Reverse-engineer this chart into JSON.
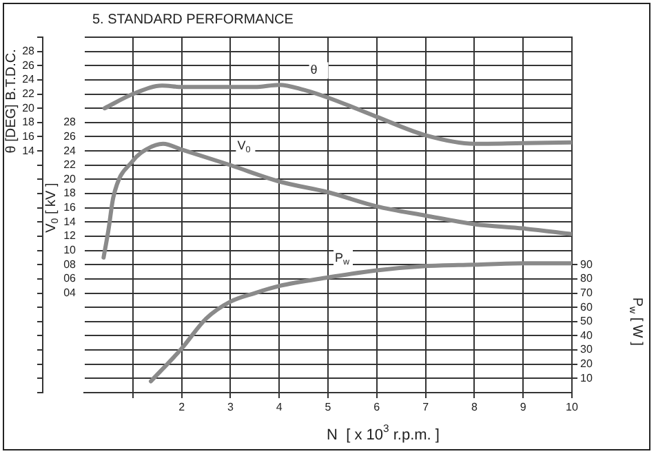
{
  "chart_data": {
    "type": "line",
    "title": "5. STANDARD PERFORMANCE",
    "xlabel": "N  [ x 10$^{3}$ r.p.m. ]",
    "ylabel": "θ [DEG] B.T.D.C.",
    "y2label": "V$_{0}$ [ kV ]",
    "y3label": "P$_{w}$ [ W ]",
    "xlim": [
      0,
      10
    ],
    "xticks": [
      {
        "value": 1,
        "label": null
      },
      2,
      3,
      4,
      5,
      6,
      7,
      8,
      9,
      10
    ],
    "ylim": [
      -20,
      30
    ],
    "yticks": [
      {
        "value": -20,
        "label": null
      },
      {
        "value": -18,
        "label": null
      },
      {
        "value": -16,
        "label": null
      },
      {
        "value": -14,
        "label": null
      },
      {
        "value": -12,
        "label": null
      },
      {
        "value": -10,
        "label": null
      },
      {
        "value": -8,
        "label": null
      },
      {
        "value": -6,
        "label": null
      },
      {
        "value": -4,
        "label": null
      },
      {
        "value": -2,
        "label": null
      },
      {
        "value": 0,
        "label": null
      },
      {
        "value": 2,
        "label": null
      },
      {
        "value": 4,
        "label": null
      },
      {
        "value": 6,
        "label": null
      },
      {
        "value": 8,
        "label": null
      },
      {
        "value": 10,
        "label": null
      },
      {
        "value": 12,
        "label": null
      },
      14,
      16,
      18,
      20,
      22,
      24,
      26,
      28,
      {
        "value": 30,
        "label": null
      }
    ],
    "y2lim": [
      -10,
      40
    ],
    "y2ticks": [
      {
        "value": 4,
        "label": "04"
      },
      {
        "value": 6,
        "label": "06"
      },
      {
        "value": 8,
        "label": "08"
      },
      10,
      12,
      14,
      16,
      18,
      20,
      22,
      24,
      26,
      28
    ],
    "y3lim": [
      0,
      250
    ],
    "y3ticks": [
      10,
      20,
      30,
      40,
      50,
      60,
      70,
      80,
      90
    ],
    "grid": true,
    "legend": false,
    "marker": "none",
    "line_style": "solid",
    "series": [
      {
        "name": "θ",
        "color": "#8a8a8a",
        "x": [
          0.42,
          1,
          1.6,
          2,
          3,
          3.5,
          4,
          4.5,
          5,
          6,
          7,
          8,
          9,
          10
        ],
        "values": [
          20,
          22,
          23.2,
          23,
          23,
          23,
          23.3,
          22.6,
          21.5,
          18.8,
          16.2,
          15,
          15.1,
          15.2
        ]
      },
      {
        "name": "V$_{0}$",
        "color": "#8a8a8a",
        "axis": "y2",
        "x": [
          0.4,
          0.5,
          0.6,
          1,
          1.3,
          1.62,
          2,
          3,
          4,
          5,
          6,
          7,
          8,
          9,
          10
        ],
        "values": [
          9,
          12.9,
          17.5,
          22.6,
          24.3,
          25,
          24.2,
          22,
          19.7,
          18.2,
          16.2,
          14.9,
          13.7,
          13.1,
          12.3
        ]
      },
      {
        "name": "P$_{w}$",
        "color": "#8a8a8a",
        "axis": "y3",
        "x": [
          1.37,
          2,
          2.5,
          3,
          3.5,
          4,
          5,
          6,
          7,
          8,
          9,
          10
        ],
        "values": [
          8,
          31,
          52,
          64,
          70,
          75,
          81,
          86,
          89,
          90,
          91,
          91
        ]
      }
    ]
  }
}
